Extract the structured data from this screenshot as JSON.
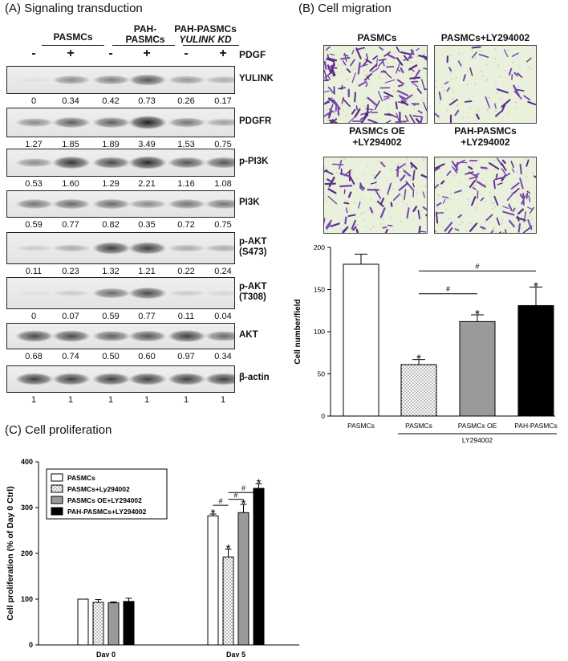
{
  "panelA": {
    "title": "(A) Signaling transduction",
    "groups": [
      {
        "line1": "PASMCs",
        "line2": ""
      },
      {
        "line1": "PAH-",
        "line2": "PASMCs"
      },
      {
        "line1": "PAH-PASMCs",
        "line2": "YULINK KD"
      }
    ],
    "treatment_label": "PDGF",
    "treatment_signs": [
      "-",
      "+",
      "-",
      "+",
      "-",
      "+"
    ],
    "blots": [
      {
        "label": "YULINK",
        "values": [
          "0",
          "0.34",
          "0.42",
          "0.73",
          "0.26",
          "0.17"
        ],
        "band_intensity": [
          0.05,
          0.45,
          0.5,
          0.7,
          0.4,
          0.3
        ]
      },
      {
        "label": "PDGFR",
        "values": [
          "1.27",
          "1.85",
          "1.89",
          "3.49",
          "1.53",
          "0.75"
        ],
        "band_intensity": [
          0.45,
          0.65,
          0.65,
          0.95,
          0.55,
          0.35
        ]
      },
      {
        "label": "p-PI3K",
        "values": [
          "0.53",
          "1.60",
          "1.29",
          "2.21",
          "1.16",
          "1.08"
        ],
        "band_intensity": [
          0.45,
          0.85,
          0.75,
          0.9,
          0.7,
          0.7
        ]
      },
      {
        "label": "PI3K",
        "values": [
          "0.59",
          "0.77",
          "0.82",
          "0.35",
          "0.72",
          "0.75"
        ],
        "band_intensity": [
          0.55,
          0.6,
          0.6,
          0.45,
          0.55,
          0.55
        ]
      },
      {
        "label": "p-AKT",
        "label2": "(S473)",
        "values": [
          "0.11",
          "0.23",
          "1.32",
          "1.21",
          "0.22",
          "0.24"
        ],
        "band_intensity": [
          0.15,
          0.3,
          0.8,
          0.8,
          0.3,
          0.3
        ]
      },
      {
        "label": "p-AKT",
        "label2": "(T308)",
        "values": [
          "0",
          "0.07",
          "0.59",
          "0.77",
          "0.11",
          "0.04"
        ],
        "band_intensity": [
          0.05,
          0.15,
          0.6,
          0.75,
          0.15,
          0.1
        ]
      },
      {
        "label": "AKT",
        "values": [
          "0.68",
          "0.74",
          "0.50",
          "0.60",
          "0.97",
          "0.34"
        ],
        "band_intensity": [
          0.75,
          0.75,
          0.65,
          0.7,
          0.8,
          0.6
        ]
      },
      {
        "label": "β-actin",
        "values": [
          "1",
          "1",
          "1",
          "1",
          "1",
          "1"
        ],
        "band_intensity": [
          0.8,
          0.8,
          0.8,
          0.8,
          0.8,
          0.8
        ]
      }
    ]
  },
  "panelB": {
    "title": "(B) Cell migration",
    "images": [
      {
        "label1": "PASMCs",
        "label2": "",
        "density": 1.0
      },
      {
        "label1": "PASMCs+LY294002",
        "label2": "",
        "density": 0.25
      },
      {
        "label1": "PASMCs OE",
        "label2": "+LY294002",
        "density": 0.5
      },
      {
        "label1": "PAH-PASMCs",
        "label2": "+LY294002",
        "density": 0.6
      }
    ],
    "chart_data": {
      "type": "bar",
      "categories": [
        "PASMCs",
        "PASMCs",
        "PASMCs OE",
        "PAH-PASMCs"
      ],
      "values": [
        180,
        61,
        112,
        131
      ],
      "errors": [
        12,
        6,
        8,
        22
      ],
      "significance": [
        "",
        "*",
        "*",
        "*"
      ],
      "fills": [
        "white",
        "dotted",
        "gray",
        "black"
      ],
      "ylabel": "Cell number/field",
      "ylim": [
        0,
        200
      ],
      "yticks": [
        "0",
        "50",
        "100",
        "150",
        "200"
      ],
      "group_label": "LY294002",
      "comparisons": [
        {
          "from": 1,
          "to": 2,
          "symbol": "#"
        },
        {
          "from": 1,
          "to": 3,
          "symbol": "#"
        }
      ]
    }
  },
  "panelC": {
    "title": "(C) Cell proliferation",
    "chart_data": {
      "type": "bar",
      "categories": [
        "Day 0",
        "Day 5"
      ],
      "series": [
        {
          "name": "PASMCs",
          "fill": "white",
          "values": [
            100,
            282
          ],
          "errors": [
            0,
            4
          ],
          "significance": [
            "",
            "*"
          ]
        },
        {
          "name": "PASMCs+Ly294002",
          "fill": "dotted",
          "values": [
            93,
            192
          ],
          "errors": [
            6,
            17
          ],
          "significance": [
            "",
            "*"
          ]
        },
        {
          "name": "PASMCs OE+LY294002",
          "fill": "gray",
          "values": [
            92,
            289
          ],
          "errors": [
            2,
            18
          ],
          "significance": [
            "",
            "*"
          ]
        },
        {
          "name": "PAH-PASMCs+LY294002",
          "fill": "black",
          "values": [
            95,
            342
          ],
          "errors": [
            7,
            10
          ],
          "significance": [
            "",
            "*"
          ]
        }
      ],
      "ylabel": "Cell proliferation (% of Day 0 Ctrl)",
      "ylim": [
        0,
        400
      ],
      "yticks": [
        "0",
        "100",
        "200",
        "300",
        "400"
      ],
      "comparisons": [
        {
          "from": 1,
          "to": 0,
          "symbol": "#"
        },
        {
          "from": 1,
          "to": 2,
          "symbol": "#"
        },
        {
          "from": 1,
          "to": 3,
          "symbol": "#"
        }
      ]
    }
  }
}
